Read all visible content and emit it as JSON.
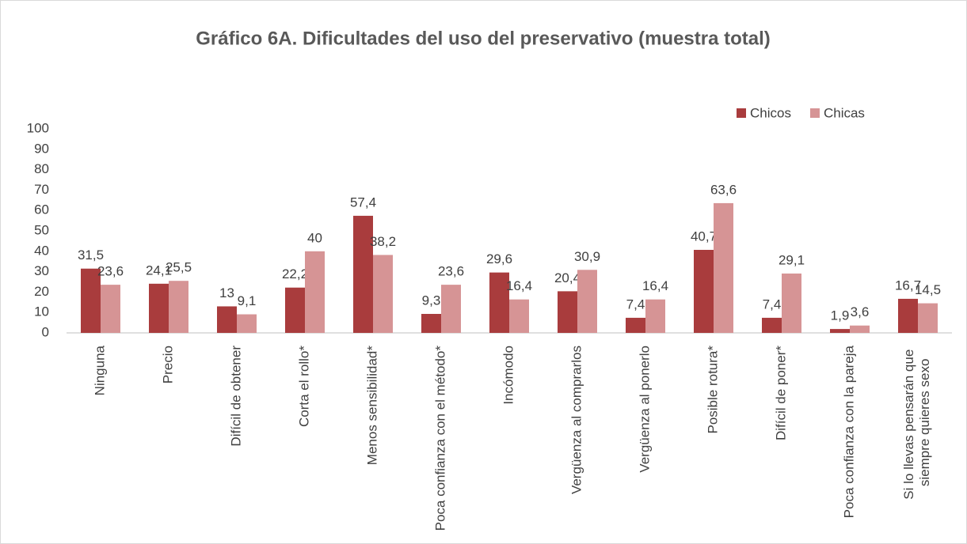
{
  "chart_data": {
    "type": "bar",
    "title": "Gráfico 6A. Dificultades del uso del preservativo (muestra total)",
    "categories": [
      "Ninguna",
      "Precio",
      "Difícil de obtener",
      "Corta el rollo*",
      "Menos sensibilidad*",
      "Poca confianza con el método*",
      "Incómodo",
      "Vergüenza al comprarlos",
      "Vergüenza al ponerlo",
      "Posible rotura*",
      "Difícil de poner*",
      "Poca confianza con la pareja",
      "Si lo llevas pensarán que siempre quieres sexo"
    ],
    "series": [
      {
        "name": "Chicos",
        "color": "#a93c3d",
        "values": [
          31.5,
          24.1,
          13,
          22.2,
          57.4,
          9.3,
          29.6,
          20.4,
          7.4,
          40.7,
          7.4,
          1.9,
          16.7
        ],
        "value_labels": [
          "31,5",
          "24,1",
          "13",
          "22,2",
          "57,4",
          "9,3",
          "29,6",
          "20,4",
          "7,4",
          "40,7",
          "7,4",
          "1,9",
          "16,7"
        ]
      },
      {
        "name": "Chicas",
        "color": "#d69495",
        "values": [
          23.6,
          25.5,
          9.1,
          40,
          38.2,
          23.6,
          16.4,
          30.9,
          16.4,
          63.6,
          29.1,
          3.6,
          14.5
        ],
        "value_labels": [
          "23,6",
          "25,5",
          "9,1",
          "40",
          "38,2",
          "23,6",
          "16,4",
          "30,9",
          "16,4",
          "63,6",
          "29,1",
          "3,6",
          "14,5"
        ]
      }
    ],
    "ylim": [
      0,
      100
    ],
    "yticks": [
      0,
      10,
      20,
      30,
      40,
      50,
      60,
      70,
      80,
      90,
      100
    ],
    "grid": false,
    "legend": "top-right"
  }
}
